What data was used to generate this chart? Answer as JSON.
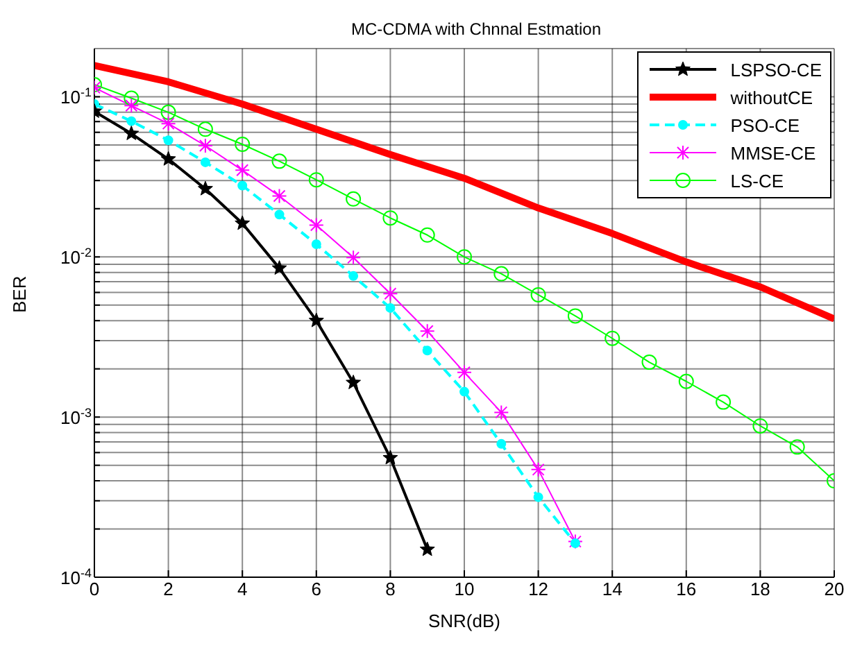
{
  "chart_data": {
    "type": "line",
    "title": "MC-CDMA with Chnnal Estmation",
    "xlabel": "SNR(dB)",
    "ylabel": "BER",
    "log": "y",
    "grid": true,
    "legend": "top right",
    "x": [
      0,
      1,
      2,
      3,
      4,
      5,
      6,
      7,
      8,
      9,
      10,
      11,
      12,
      13,
      14,
      15,
      16,
      17,
      18,
      19,
      20
    ],
    "xlim": [
      0,
      20
    ],
    "xticks": [
      0,
      2,
      4,
      6,
      8,
      10,
      12,
      14,
      16,
      18,
      20
    ],
    "ylim": [
      0.0001,
      0.2
    ],
    "yticks": [
      {
        "value": 0.0001,
        "label": "10$^{-4}$"
      },
      {
        "value": 0.0002,
        "label": null
      },
      {
        "value": 0.0003,
        "label": null
      },
      {
        "value": 0.0004,
        "label": null
      },
      {
        "value": 0.0005,
        "label": null
      },
      {
        "value": 0.0006,
        "label": null
      },
      {
        "value": 0.0007,
        "label": null
      },
      {
        "value": 0.0008,
        "label": null
      },
      {
        "value": 0.0009,
        "label": null
      },
      {
        "value": 0.001,
        "label": "10$^{-3}$"
      },
      {
        "value": 0.002,
        "label": null
      },
      {
        "value": 0.003,
        "label": null
      },
      {
        "value": 0.004,
        "label": null
      },
      {
        "value": 0.005,
        "label": null
      },
      {
        "value": 0.006,
        "label": null
      },
      {
        "value": 0.007,
        "label": null
      },
      {
        "value": 0.008,
        "label": null
      },
      {
        "value": 0.009,
        "label": null
      },
      {
        "value": 0.01,
        "label": "10$^{-2}$"
      },
      {
        "value": 0.02,
        "label": null
      },
      {
        "value": 0.03,
        "label": null
      },
      {
        "value": 0.04,
        "label": null
      },
      {
        "value": 0.05,
        "label": null
      },
      {
        "value": 0.06,
        "label": null
      },
      {
        "value": 0.07,
        "label": null
      },
      {
        "value": 0.08,
        "label": null
      },
      {
        "value": 0.09,
        "label": null
      },
      {
        "value": 0.1,
        "label": "10$^{-1}$"
      }
    ],
    "series": [
      {
        "name": "LSPSO-CE",
        "color": "#000000",
        "marker": "star",
        "line_style": "solid",
        "values": [
          0.081,
          0.0589,
          0.0408,
          0.0266,
          0.0162,
          0.0085,
          0.004,
          0.00164,
          0.000556,
          0.000149,
          null,
          null,
          null,
          null,
          null,
          null,
          null,
          null,
          null,
          null,
          null
        ]
      },
      {
        "name": "withoutCE",
        "color": "#ff0000",
        "marker": "none",
        "line_style": "solid",
        "values": [
          0.157,
          null,
          0.124,
          null,
          0.09,
          null,
          0.0627,
          null,
          0.0436,
          null,
          0.031,
          null,
          0.0202,
          null,
          0.014,
          null,
          0.0093,
          null,
          0.0065,
          null,
          0.0041
        ]
      },
      {
        "name": "PSO-CE",
        "color": "#00ffff",
        "marker": "circle",
        "line_style": "dashed",
        "values": [
          0.09,
          0.0704,
          0.0535,
          0.039,
          0.0279,
          0.0184,
          0.012,
          0.0076,
          0.0048,
          0.0026,
          0.00144,
          0.00068,
          0.000316,
          0.000163,
          null,
          null,
          null,
          null,
          null,
          null,
          null
        ]
      },
      {
        "name": "MMSE-CE",
        "color": "#ff00ff",
        "marker": "cross",
        "line_style": "solid",
        "values": [
          0.114,
          0.088,
          0.068,
          0.0495,
          0.0348,
          0.024,
          0.0158,
          0.0099,
          0.0059,
          0.00344,
          0.0019,
          0.00107,
          0.00047,
          0.000167,
          null,
          null,
          null,
          null,
          null,
          null,
          null
        ]
      },
      {
        "name": "LS-CE",
        "color": "#00ff00",
        "marker": "circle",
        "line_style": "solid",
        "values": [
          0.119,
          0.098,
          0.08,
          0.0627,
          0.0505,
          0.0396,
          0.0303,
          0.023,
          0.0175,
          0.0137,
          0.01,
          0.00785,
          0.0058,
          0.00428,
          0.0031,
          0.0022,
          0.00167,
          0.00124,
          0.00088,
          0.00065,
          0.0004
        ]
      }
    ]
  }
}
